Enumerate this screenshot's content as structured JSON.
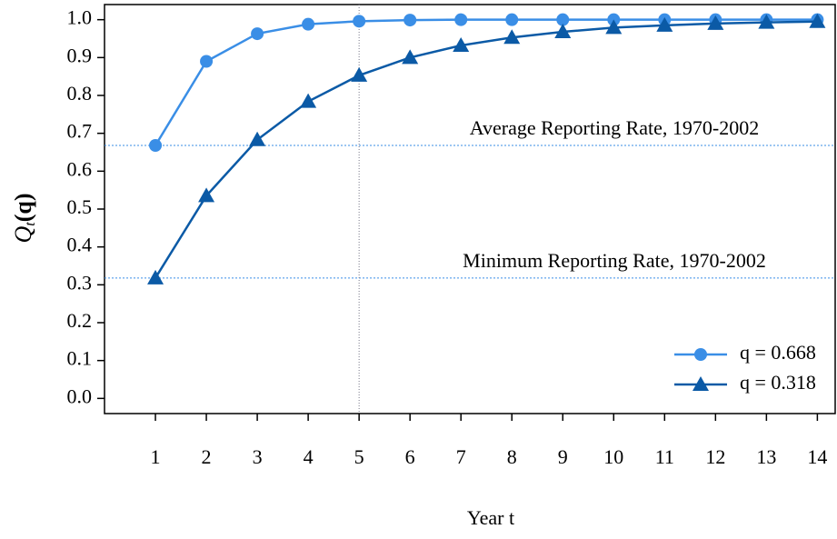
{
  "chart_data": {
    "type": "line",
    "ylabel": {
      "main": "Q",
      "sub": "t",
      "rest": "(q)"
    },
    "xlabel": "Year t",
    "x": [
      1,
      2,
      3,
      4,
      5,
      6,
      7,
      8,
      9,
      10,
      11,
      12,
      13,
      14
    ],
    "series": [
      {
        "name": "q = 0.668",
        "color": "#3a8ee6",
        "marker": "circle",
        "values": [
          0.668,
          0.89,
          0.963,
          0.988,
          0.996,
          0.999,
          1.0,
          1.0,
          1.0,
          1.0,
          1.0,
          1.0,
          1.0,
          1.0
        ]
      },
      {
        "name": "q = 0.318",
        "color": "#0b5aa6",
        "marker": "triangle",
        "values": [
          0.318,
          0.535,
          0.683,
          0.784,
          0.853,
          0.9,
          0.932,
          0.953,
          0.968,
          0.979,
          0.985,
          0.99,
          0.993,
          0.995
        ]
      }
    ],
    "hlines": [
      {
        "value": 0.668,
        "label": "Average Reporting Rate, 1970-2002"
      },
      {
        "value": 0.318,
        "label": "Minimum Reporting Rate, 1970-2002"
      }
    ],
    "vlines": [
      5
    ],
    "xlim": [
      0,
      14.35
    ],
    "ylim": [
      -0.04,
      1.04
    ],
    "xticks": [
      1,
      2,
      3,
      4,
      5,
      6,
      7,
      8,
      9,
      10,
      11,
      12,
      13,
      14
    ],
    "yticks": [
      {
        "value": 0,
        "label": "0.0"
      },
      0.1,
      0.2,
      0.3,
      0.4,
      0.5,
      0.6,
      0.7,
      0.8,
      0.9,
      {
        "value": 1,
        "label": "1.0"
      }
    ],
    "legend": "bottom-right"
  }
}
